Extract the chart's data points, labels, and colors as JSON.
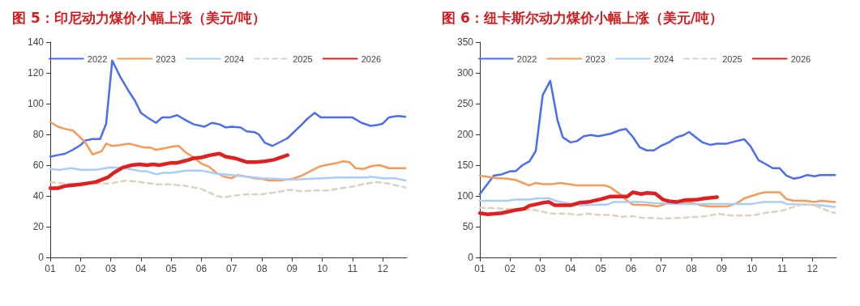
{
  "chart_data": [
    {
      "type": "line",
      "title": "图 5：印尼动力煤价小幅上涨（美元/吨）",
      "legend": "top",
      "grid": false,
      "marker": "none",
      "xlim": [
        1,
        12.8
      ],
      "xticks": [
        {
          "value": 1,
          "label": "01"
        },
        {
          "value": 2,
          "label": "02"
        },
        {
          "value": 3,
          "label": "03"
        },
        {
          "value": 4,
          "label": "04"
        },
        {
          "value": 5,
          "label": "05"
        },
        {
          "value": 6,
          "label": "06"
        },
        {
          "value": 7,
          "label": "07"
        },
        {
          "value": 8,
          "label": "08"
        },
        {
          "value": 9,
          "label": "09"
        },
        {
          "value": 10,
          "label": "10"
        },
        {
          "value": 11,
          "label": "11"
        },
        {
          "value": 12,
          "label": "12"
        }
      ],
      "ylim": [
        0,
        140
      ],
      "yticks": [
        0,
        20,
        40,
        60,
        80,
        100,
        120,
        140
      ],
      "series": [
        {
          "name": "2022",
          "color": "#4a6cf7",
          "line_style": "solid",
          "x": [
            1,
            1.25,
            1.5,
            1.75,
            2,
            2.15,
            2.4,
            2.65,
            2.85,
            3.05,
            3.3,
            3.6,
            3.8,
            4,
            4.25,
            4.5,
            4.7,
            4.95,
            5.2,
            5.5,
            5.75,
            6.1,
            6.35,
            6.6,
            6.8,
            7,
            7.3,
            7.5,
            7.75,
            7.9,
            8.1,
            8.35,
            8.6,
            8.85,
            9.3,
            9.5,
            9.75,
            9.95,
            10.1,
            10.5,
            11,
            11.3,
            11.6,
            11.8,
            12,
            12.2,
            12.5,
            12.75
          ],
          "values": [
            65.5,
            66.5,
            67.5,
            70,
            73,
            76,
            77,
            77,
            87,
            128,
            118,
            108,
            102,
            94,
            90.5,
            87.5,
            91,
            91,
            92.5,
            89,
            86.5,
            85,
            87.5,
            86.5,
            84.5,
            85,
            84.5,
            82,
            81.5,
            80,
            74.5,
            72.5,
            75,
            77.5,
            86,
            90,
            94,
            91,
            91,
            91,
            91,
            87.5,
            85.5,
            86,
            87,
            91,
            92,
            91.5
          ]
        },
        {
          "name": "2023",
          "color": "#f79a55",
          "line_style": "solid",
          "x": [
            1,
            1.25,
            1.5,
            1.75,
            2,
            2.15,
            2.4,
            2.7,
            2.85,
            3.05,
            3.3,
            3.6,
            3.9,
            4.1,
            4.3,
            4.5,
            4.8,
            5,
            5.25,
            5.5,
            5.75,
            6,
            6.25,
            6.5,
            6.75,
            7,
            7.2,
            7.5,
            7.75,
            8,
            8.25,
            8.6,
            9,
            9.3,
            9.6,
            9.9,
            10.1,
            10.4,
            10.7,
            10.9,
            11.1,
            11.35,
            11.65,
            11.9,
            12.2,
            12.75
          ],
          "values": [
            88,
            85,
            83.5,
            82.5,
            78,
            75,
            67,
            69,
            74,
            72.5,
            73,
            74,
            72.5,
            71.5,
            71.5,
            70,
            71,
            72,
            72.5,
            68,
            65,
            61,
            59,
            55,
            52.5,
            51.5,
            53.5,
            52.5,
            51.5,
            51,
            50,
            50,
            51,
            53,
            56,
            59,
            60,
            61,
            62.5,
            62,
            58,
            57.5,
            59.5,
            60,
            58,
            58
          ]
        },
        {
          "name": "2024",
          "color": "#a9cdf9",
          "line_style": "solid",
          "x": [
            1,
            1.3,
            1.7,
            2,
            2.5,
            3,
            3.5,
            4,
            4.2,
            4.5,
            4.75,
            5,
            5.5,
            6,
            6.5,
            7,
            7.5,
            8,
            8.5,
            9,
            9.5,
            10,
            10.5,
            11,
            11.5,
            11.6,
            12,
            12.4,
            12.75
          ],
          "values": [
            57.5,
            57,
            58,
            57,
            57,
            58.5,
            58,
            56,
            56,
            54,
            55,
            55,
            56.5,
            56.5,
            54.5,
            53.5,
            52.5,
            51.5,
            51,
            50.5,
            51,
            51.5,
            52,
            52,
            52,
            52.5,
            51.5,
            51.5,
            50
          ]
        },
        {
          "name": "2025",
          "color": "#ddd3bd",
          "line_style": "dashed",
          "x": [
            1,
            1.5,
            2,
            2.5,
            3,
            3.5,
            4,
            4.5,
            5,
            5.5,
            6,
            6.5,
            6.75,
            7,
            7.5,
            8,
            8.5,
            8.9,
            9.3,
            9.7,
            10.2,
            10.6,
            11,
            11.3,
            11.8,
            12.2,
            12.75
          ],
          "values": [
            49,
            48,
            48,
            48,
            48,
            50,
            49,
            47.5,
            47.5,
            46.5,
            44.5,
            40,
            39,
            40,
            41,
            41,
            42.5,
            44,
            43,
            43.5,
            43.5,
            45,
            46,
            47.5,
            49,
            48,
            45.5
          ]
        },
        {
          "name": "2026",
          "color": "#e02020",
          "line_style": "solid",
          "x": [
            1,
            1.25,
            1.5,
            1.75,
            2,
            2.5,
            2.9,
            3.1,
            3.4,
            3.7,
            3.95,
            4.2,
            4.4,
            4.6,
            5,
            5.2,
            5.5,
            5.75,
            6,
            6.3,
            6.6,
            6.8,
            7.1,
            7.5,
            7.8,
            8.1,
            8.4,
            8.85
          ],
          "values": [
            45,
            45,
            46.5,
            47,
            47.5,
            49,
            52,
            55,
            58.5,
            60,
            60.5,
            60,
            60.5,
            60,
            61.5,
            61.5,
            63,
            64.5,
            65,
            66.5,
            67.5,
            65.5,
            64.5,
            62,
            62,
            62.5,
            63.5,
            66.5
          ]
        }
      ]
    },
    {
      "type": "line",
      "title": "图 6：纽卡斯尔动力煤价小幅上涨（美元/吨）",
      "legend": "top",
      "grid": false,
      "marker": "none",
      "xlim": [
        1,
        12.8
      ],
      "xticks": [
        {
          "value": 1,
          "label": "01"
        },
        {
          "value": 2,
          "label": "02"
        },
        {
          "value": 3,
          "label": "03"
        },
        {
          "value": 4,
          "label": "04"
        },
        {
          "value": 5,
          "label": "05"
        },
        {
          "value": 6,
          "label": "06"
        },
        {
          "value": 7,
          "label": "07"
        },
        {
          "value": 8,
          "label": "08"
        },
        {
          "value": 9,
          "label": "09"
        },
        {
          "value": 10,
          "label": "10"
        },
        {
          "value": 11,
          "label": "11"
        },
        {
          "value": 12,
          "label": "12"
        }
      ],
      "ylim": [
        0,
        350
      ],
      "yticks": [
        0,
        50,
        100,
        150,
        200,
        250,
        300,
        350
      ],
      "series": [
        {
          "name": "2022",
          "color": "#4a6cf7",
          "line_style": "solid",
          "x": [
            1,
            1.46,
            1.72,
            2,
            2.18,
            2.41,
            2.64,
            2.85,
            3.08,
            3.33,
            3.57,
            3.75,
            4,
            4.21,
            4.44,
            4.67,
            4.92,
            5.32,
            5.64,
            5.83,
            6.06,
            6.29,
            6.52,
            6.76,
            6.98,
            7.25,
            7.5,
            7.75,
            7.92,
            8.15,
            8.37,
            8.62,
            8.84,
            9.17,
            9.48,
            9.75,
            9.95,
            10.22,
            10.45,
            10.69,
            10.92,
            11.14,
            11.38,
            11.6,
            11.83,
            12.08,
            12.25,
            12.75
          ],
          "values": [
            103,
            133,
            135,
            140,
            140,
            150,
            156,
            173,
            264,
            287,
            223,
            195,
            187,
            189,
            197,
            199,
            197,
            201,
            207,
            209,
            196,
            179,
            174,
            174,
            181,
            187,
            195,
            199,
            204,
            195,
            187,
            183,
            185,
            185,
            189,
            192,
            181,
            158,
            152,
            145,
            145,
            133,
            128,
            130,
            134,
            132,
            134,
            134
          ]
        },
        {
          "name": "2023",
          "color": "#f79a55",
          "line_style": "solid",
          "x": [
            1,
            1.54,
            1.9,
            2.18,
            2.63,
            2.83,
            3.1,
            3.38,
            3.66,
            3.94,
            4.21,
            4.58,
            5.14,
            5.32,
            5.69,
            5.88,
            6.06,
            6.61,
            6.89,
            7.2,
            7.5,
            8,
            8.3,
            8.6,
            9.2,
            9.5,
            9.75,
            10.25,
            10.45,
            10.92,
            11.14,
            11.38,
            11.75,
            12.08,
            12.3,
            12.75
          ],
          "values": [
            133,
            129,
            128,
            126,
            117,
            121,
            119,
            119,
            121,
            119,
            117,
            117,
            117,
            114,
            101,
            92,
            86,
            85,
            83,
            88,
            89,
            89,
            85,
            83,
            83,
            88,
            96,
            104,
            106,
            106,
            95,
            92,
            92,
            90,
            92,
            90
          ]
        },
        {
          "name": "2024",
          "color": "#a9cdf9",
          "line_style": "solid",
          "x": [
            1,
            1.9,
            2.18,
            2.64,
            2.92,
            3.29,
            3.57,
            3.94,
            4.3,
            4.95,
            5.23,
            5.41,
            5.88,
            6.34,
            6.8,
            7.5,
            8.5,
            9.5,
            10,
            10.4,
            11,
            11.14,
            11.75,
            12.25,
            12.75
          ],
          "values": [
            92,
            92,
            94,
            94,
            96,
            96,
            91,
            88,
            85,
            86,
            86,
            90,
            90,
            90,
            88,
            87,
            87,
            87,
            87,
            90,
            90,
            87,
            86,
            85,
            82
          ]
        },
        {
          "name": "2025",
          "color": "#ddd3bd",
          "line_style": "dashed",
          "x": [
            1,
            1.54,
            2.18,
            2.83,
            3.38,
            3.94,
            4.21,
            4.58,
            4.95,
            5.32,
            5.69,
            6.06,
            6.43,
            6.8,
            7,
            7.92,
            8.5,
            8.9,
            9.3,
            10,
            10.4,
            11,
            11.3,
            11.65,
            12,
            12.3,
            12.6,
            12.75
          ],
          "values": [
            81,
            80,
            78,
            77,
            71,
            71,
            69,
            71,
            69,
            69,
            66,
            67,
            64,
            64,
            63,
            65,
            67,
            71,
            68,
            68,
            72,
            76,
            81,
            86,
            86,
            80,
            74,
            72
          ]
        },
        {
          "name": "2026",
          "color": "#e02020",
          "line_style": "solid",
          "x": [
            1,
            1.26,
            1.72,
            2.18,
            2.46,
            2.64,
            3.1,
            3.29,
            3.47,
            3.84,
            4.03,
            4.3,
            4.58,
            4.95,
            5.32,
            5.69,
            5.88,
            6.06,
            6.34,
            6.52,
            6.8,
            7.06,
            7.3,
            7.5,
            7.76,
            8.2,
            8.46,
            8.85
          ],
          "values": [
            72,
            70,
            72,
            77,
            79,
            84,
            89,
            90,
            85,
            85,
            85,
            89,
            90,
            94,
            99,
            99,
            99,
            106,
            103,
            105,
            104,
            94,
            91,
            90,
            93,
            94,
            96,
            98
          ]
        }
      ]
    }
  ]
}
